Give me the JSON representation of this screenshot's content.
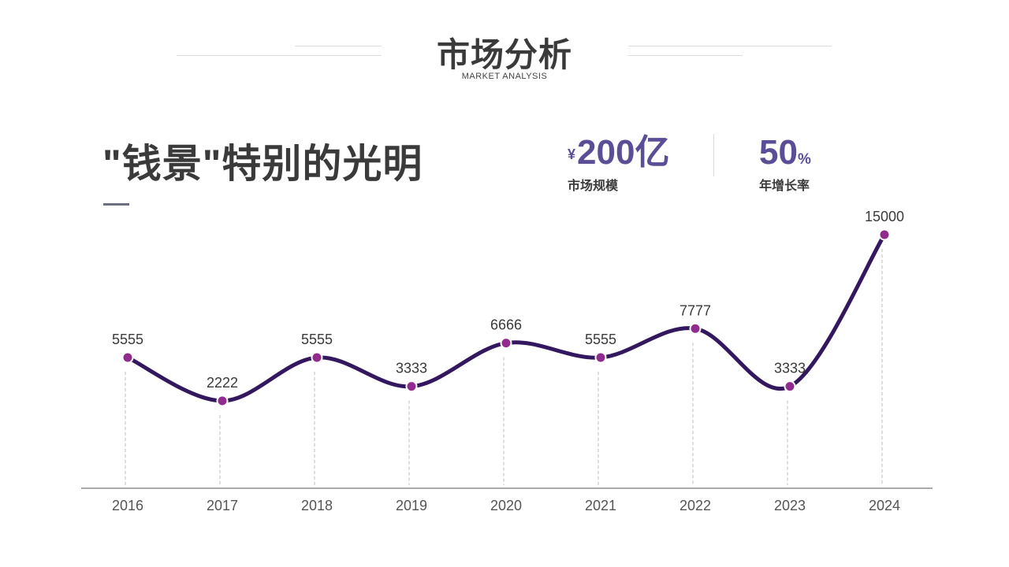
{
  "header": {
    "title": "市场分析",
    "subtitle": "MARKET ANALYSIS"
  },
  "headline": "\"钱景\"特别的光明",
  "stats": {
    "market_size": {
      "symbol": "¥",
      "value": "200",
      "unit": "亿",
      "label": "市场规模"
    },
    "growth_rate": {
      "value": "50",
      "unit": "%",
      "label": "年增长率"
    }
  },
  "colors": {
    "accent": "#5b4e96",
    "line": "#33175f",
    "marker": "#922b8e",
    "text_dark": "#3a3a3a",
    "axis": "#555555"
  },
  "chart_data": {
    "type": "line",
    "title": "",
    "xlabel": "",
    "ylabel": "",
    "categories": [
      "2016",
      "2017",
      "2018",
      "2019",
      "2020",
      "2021",
      "2022",
      "2023",
      "2024"
    ],
    "series": [
      {
        "values": [
          5555,
          2222,
          5555,
          3333,
          6666,
          5555,
          7777,
          3333,
          15000
        ]
      }
    ],
    "data_labels": [
      "5555",
      "2222",
      "5555",
      "3333",
      "6666",
      "5555",
      "7777",
      "3333",
      "15000"
    ],
    "smooth": true,
    "ylim": [
      -4500,
      15000
    ],
    "grid": false,
    "legend": "none"
  }
}
